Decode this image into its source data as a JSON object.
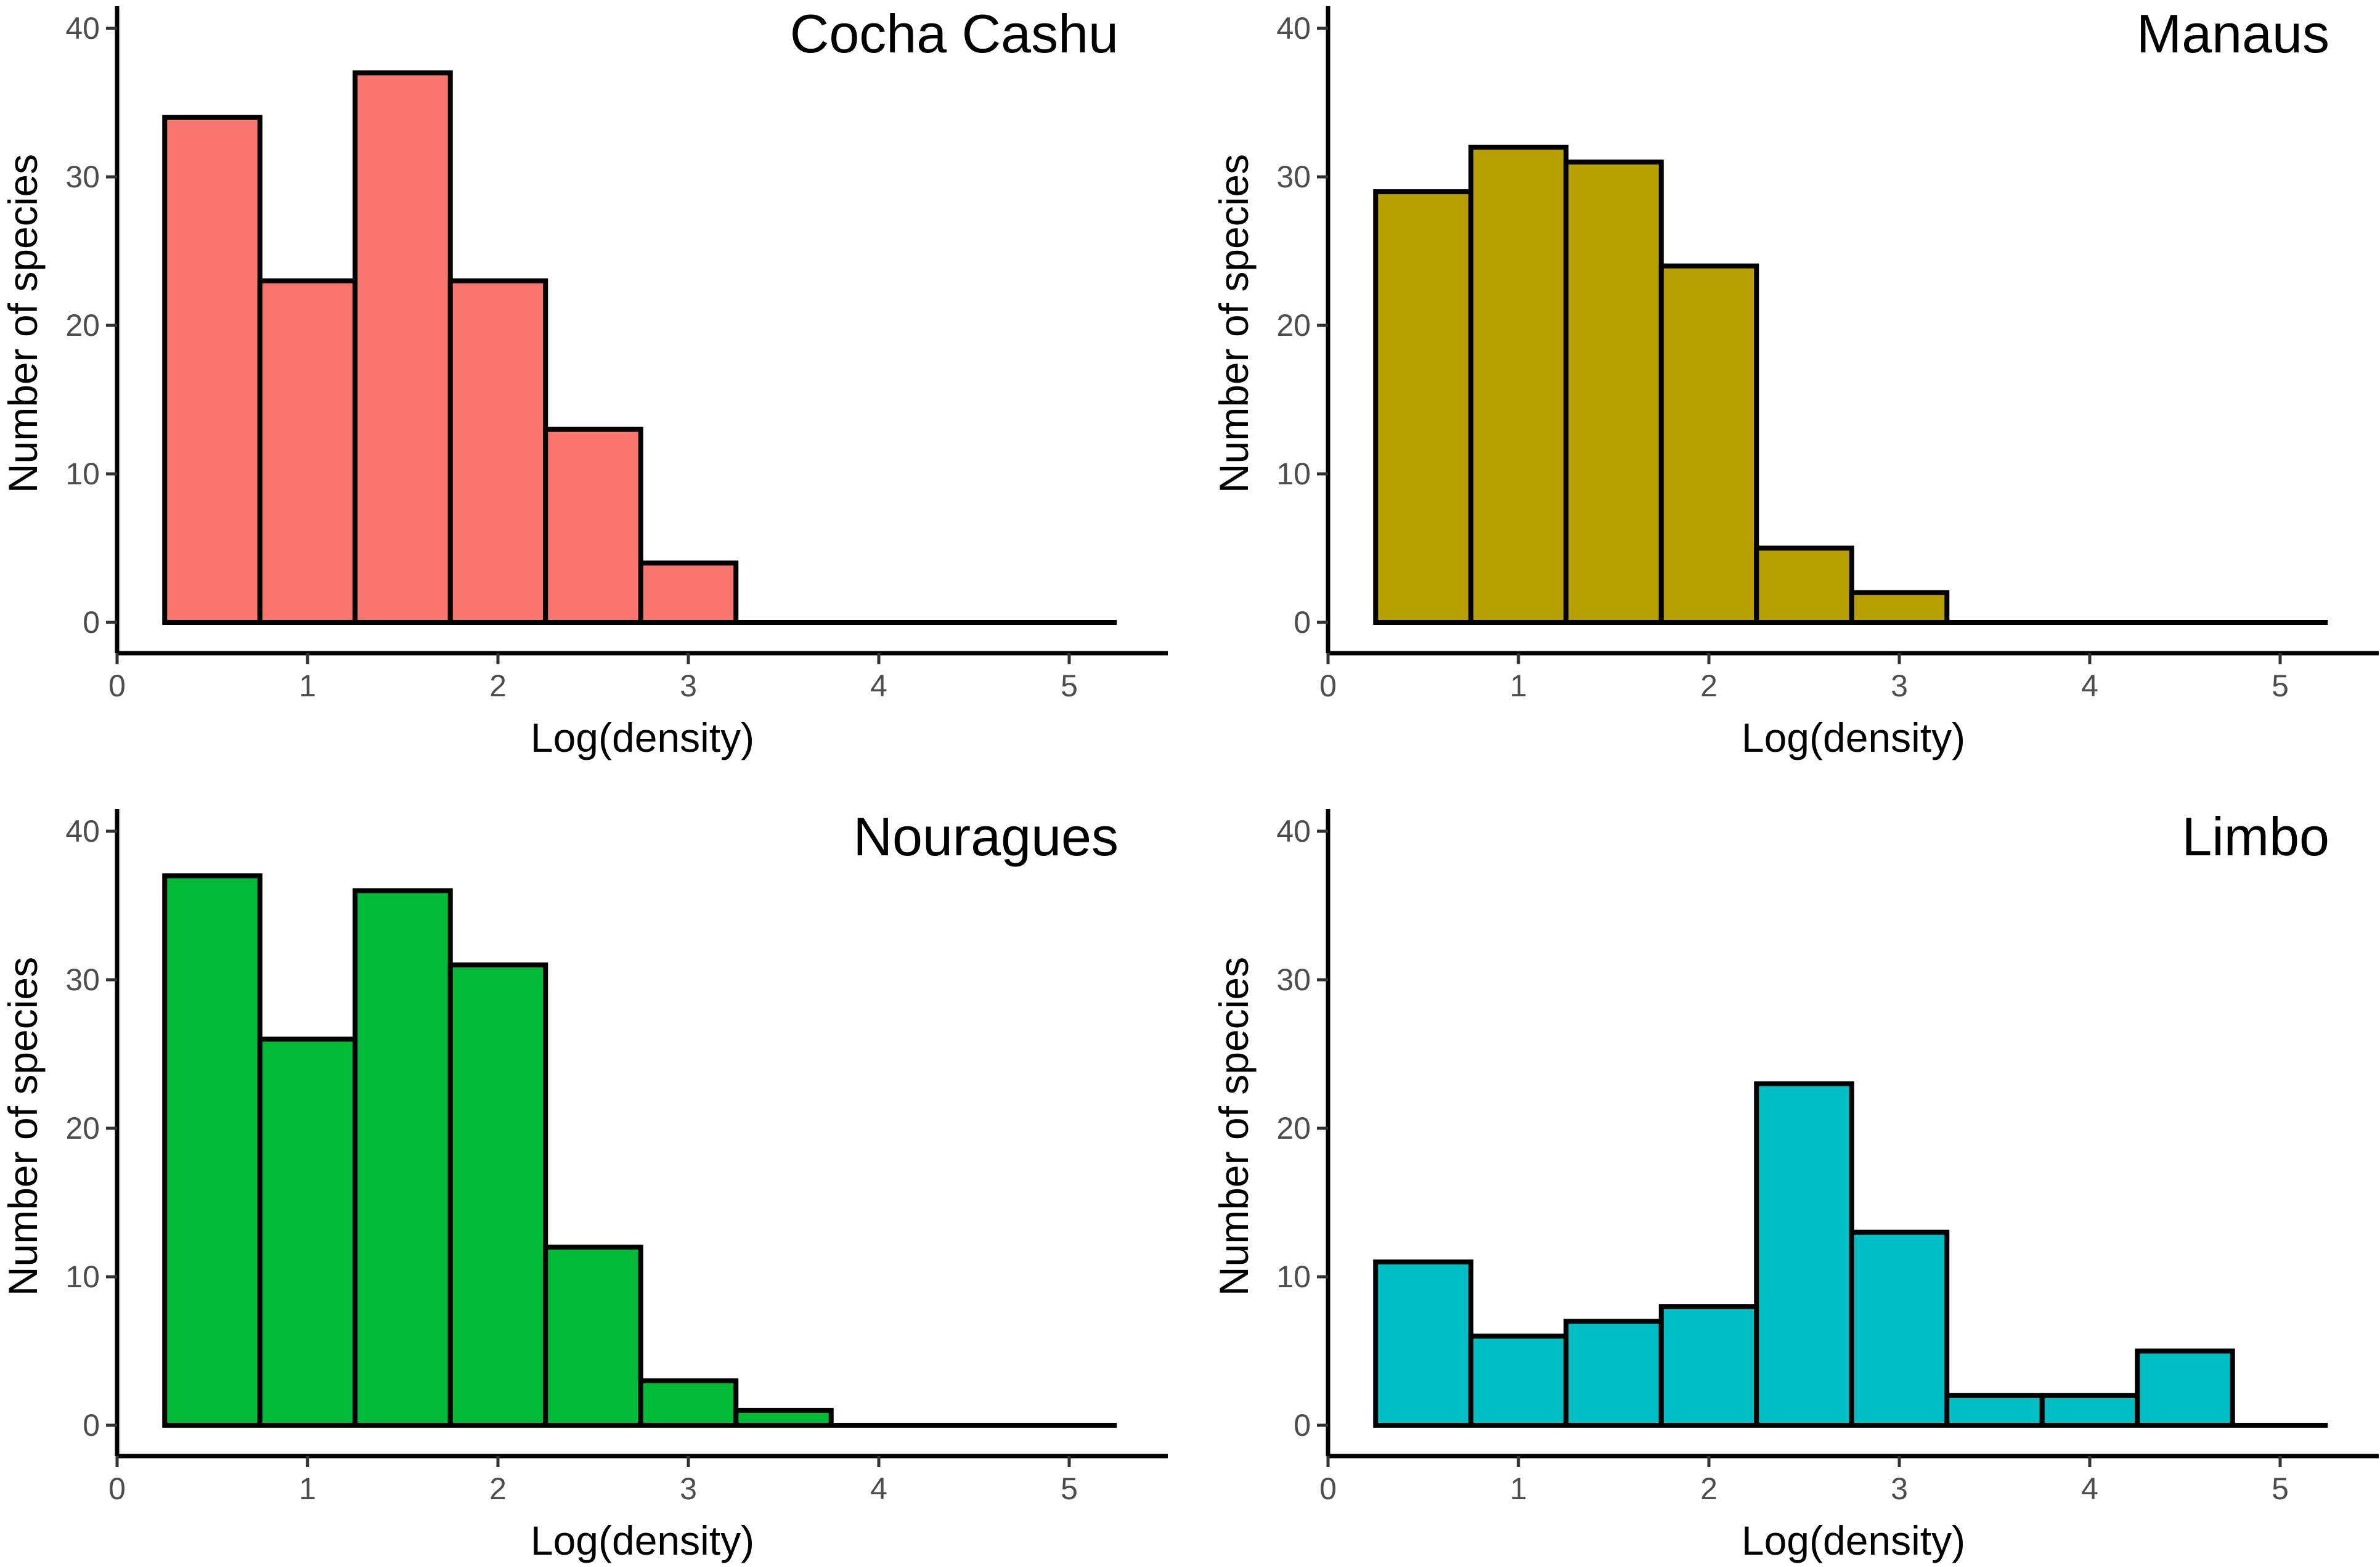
{
  "chart_data": [
    {
      "type": "bar",
      "title": "Cocha Cashu",
      "color": "#F8766D",
      "xlabel": "Log(density)",
      "ylabel": "Number of species",
      "xlim": [
        0,
        5.5
      ],
      "ylim": [
        0,
        42
      ],
      "xticks": [
        "0",
        "1",
        "2",
        "3",
        "4",
        "5"
      ],
      "yticks": [
        "0",
        "10",
        "20",
        "30",
        "40"
      ],
      "bin_width": 0.5,
      "bin_starts": [
        0.25,
        0.75,
        1.25,
        1.75,
        2.25,
        2.75,
        3.25,
        3.75,
        4.25,
        4.75
      ],
      "values": [
        34,
        23,
        37,
        23,
        13,
        4,
        0,
        0,
        0,
        0
      ]
    },
    {
      "type": "bar",
      "title": "Manaus",
      "color": "#B79F00",
      "xlabel": "Log(density)",
      "ylabel": "Number of species",
      "xlim": [
        0,
        5.5
      ],
      "ylim": [
        0,
        42
      ],
      "xticks": [
        "0",
        "1",
        "2",
        "3",
        "4",
        "5"
      ],
      "yticks": [
        "0",
        "10",
        "20",
        "30",
        "40"
      ],
      "bin_width": 0.5,
      "bin_starts": [
        0.25,
        0.75,
        1.25,
        1.75,
        2.25,
        2.75,
        3.25,
        3.75,
        4.25,
        4.75
      ],
      "values": [
        29,
        32,
        31,
        24,
        5,
        2,
        0,
        0,
        0,
        0
      ]
    },
    {
      "type": "bar",
      "title": "Nouragues",
      "color": "#00BA38",
      "xlabel": "Log(density)",
      "ylabel": "Number of species",
      "xlim": [
        0,
        5.5
      ],
      "ylim": [
        0,
        42
      ],
      "xticks": [
        "0",
        "1",
        "2",
        "3",
        "4",
        "5"
      ],
      "yticks": [
        "0",
        "10",
        "20",
        "30",
        "40"
      ],
      "bin_width": 0.5,
      "bin_starts": [
        0.25,
        0.75,
        1.25,
        1.75,
        2.25,
        2.75,
        3.25,
        3.75,
        4.25,
        4.75
      ],
      "values": [
        37,
        26,
        36,
        31,
        12,
        3,
        1,
        0,
        0,
        0
      ]
    },
    {
      "type": "bar",
      "title": "Limbo",
      "color": "#00BFC4",
      "xlabel": "Log(density)",
      "ylabel": "Number of species",
      "xlim": [
        0,
        5.5
      ],
      "ylim": [
        0,
        42
      ],
      "xticks": [
        "0",
        "1",
        "2",
        "3",
        "4",
        "5"
      ],
      "yticks": [
        "0",
        "10",
        "20",
        "30",
        "40"
      ],
      "bin_width": 0.5,
      "bin_starts": [
        0.25,
        0.75,
        1.25,
        1.75,
        2.25,
        2.75,
        3.25,
        3.75,
        4.25,
        4.75
      ],
      "values": [
        11,
        6,
        7,
        8,
        23,
        13,
        2,
        2,
        5,
        0
      ]
    }
  ]
}
